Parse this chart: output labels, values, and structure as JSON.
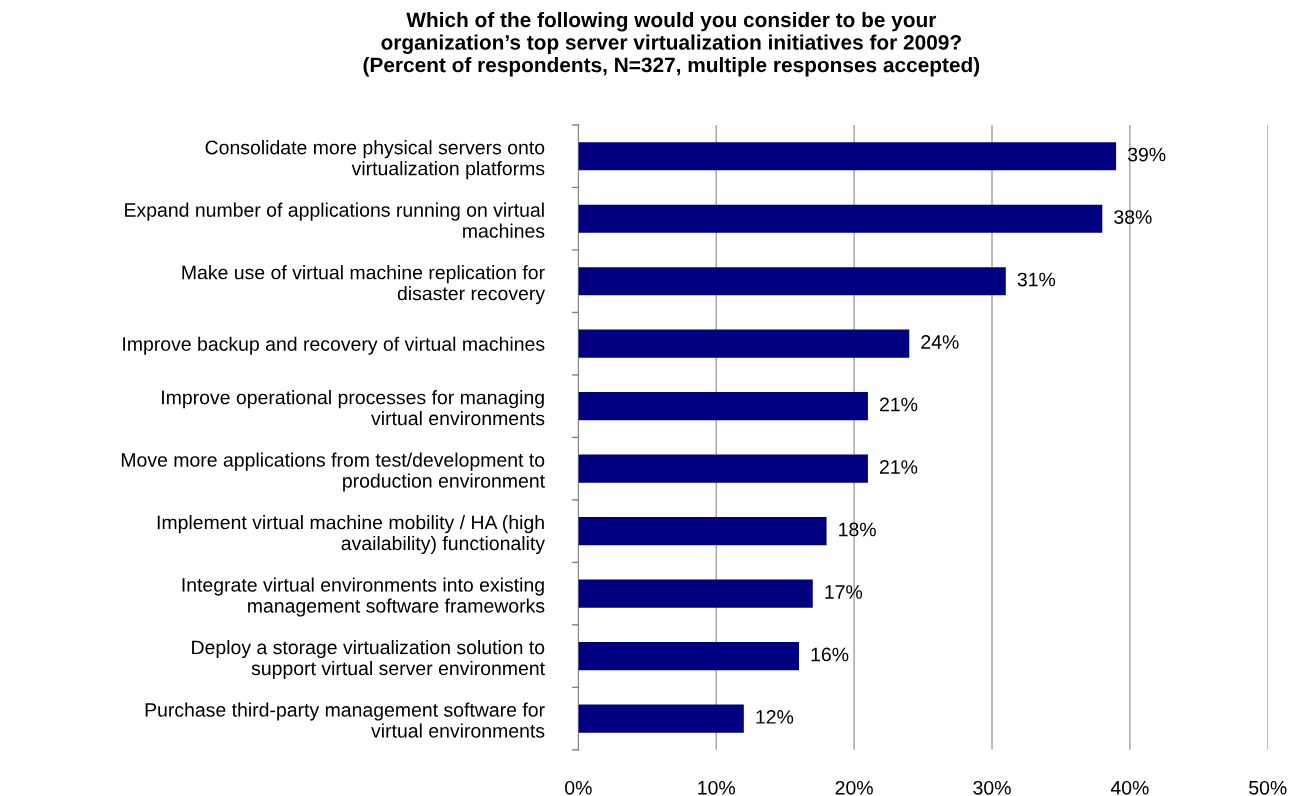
{
  "chart_data": {
    "type": "bar",
    "orientation": "horizontal",
    "title": "Which of the following would you consider to be your\norganization’s top server virtualization initiatives for 2009?\n(Percent of respondents, N=327, multiple responses accepted)",
    "categories": [
      "Consolidate more physical servers onto virtualization platforms",
      "Expand number of applications running on virtual machines",
      "Make use of virtual machine replication for disaster recovery",
      "Improve backup and recovery of virtual machines",
      "Improve operational processes for managing virtual environments",
      "Move more applications from test/development to production environment",
      "Implement virtual machine mobility / HA (high availability) functionality",
      "Integrate virtual environments into existing management software frameworks",
      "Deploy a storage virtualization solution to support virtual server environment",
      "Purchase third-party management software for virtual environments"
    ],
    "values": [
      39,
      38,
      31,
      24,
      21,
      21,
      18,
      17,
      16,
      12
    ],
    "value_labels": [
      "39%",
      "38%",
      "31%",
      "24%",
      "21%",
      "21%",
      "18%",
      "17%",
      "16%",
      "12%"
    ],
    "color": "#000080",
    "xlim": [
      0,
      50
    ],
    "xticks": [
      {
        "value": 0,
        "label": "0%"
      },
      {
        "value": 10,
        "label": "10%"
      },
      {
        "value": 20,
        "label": "20%"
      },
      {
        "value": 30,
        "label": "30%"
      },
      {
        "value": 40,
        "label": "40%"
      },
      {
        "value": 50,
        "label": "50%"
      }
    ],
    "grid": "x"
  }
}
